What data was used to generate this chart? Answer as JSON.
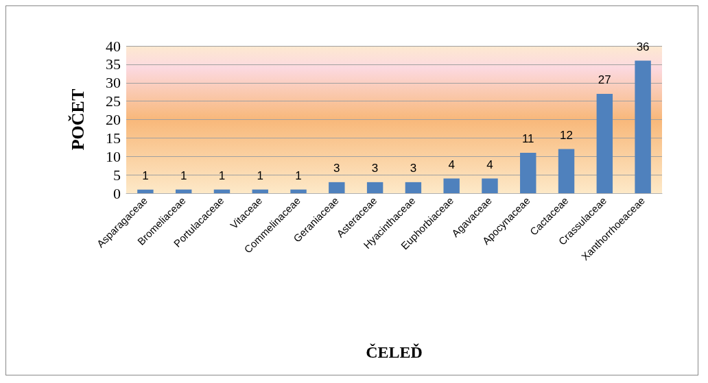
{
  "chart_data": {
    "type": "bar",
    "xlabel": "ČELEĎ",
    "ylabel": "POČET",
    "categories": [
      "Asparagaceae",
      "Bromeliaceae",
      "Portulacaceae",
      "Vitaceae",
      "Commelinaceae",
      "Geraniaceae",
      "Asteraceae",
      "Hyacinthaceae",
      "Euphorbiaceae",
      "Agavaceae",
      "Apocynaceae",
      "Cactaceae",
      "Crassulaceae",
      "Xanthorrhoeaceae"
    ],
    "values": [
      1,
      1,
      1,
      1,
      1,
      3,
      3,
      3,
      4,
      4,
      11,
      12,
      27,
      36
    ],
    "color": "#4f81bd",
    "ylim": [
      0,
      40
    ],
    "yticks": [
      0,
      5,
      10,
      15,
      20,
      25,
      30,
      35,
      40
    ],
    "grid": "y",
    "data_labels": true
  }
}
